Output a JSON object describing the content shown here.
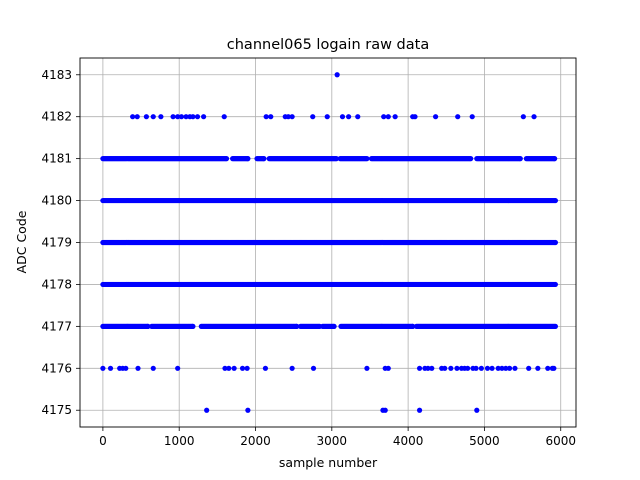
{
  "chart_data": {
    "type": "scatter",
    "title": "channel065 logain raw data",
    "xlabel": "sample number",
    "ylabel": "ADC Code",
    "xlim": [
      -300,
      6200
    ],
    "ylim": [
      4174.6,
      4183.4
    ],
    "xticks": [
      0,
      1000,
      2000,
      3000,
      4000,
      5000,
      6000
    ],
    "yticks": [
      4175,
      4176,
      4177,
      4178,
      4179,
      4180,
      4181,
      4182,
      4183
    ],
    "grid": true,
    "legend": "none",
    "marker_color": "#0000ff",
    "sample_count_approx": 5930,
    "series": [
      {
        "points_by_level": [
          {
            "y": 4183,
            "x": [
              3070
            ]
          },
          {
            "y": 4182,
            "x": [
              390,
              450,
              570,
              660,
              760,
              920,
              980,
              1030,
              1090,
              1140,
              1180,
              1240,
              1320,
              1590,
              2140,
              2200,
              2390,
              2430,
              2480,
              2750,
              2940,
              3140,
              3220,
              3340,
              3680,
              3740,
              3830,
              4060,
              4090,
              4360,
              4650,
              4840,
              5510,
              5650
            ]
          },
          {
            "y": 4181,
            "x_ranges": [
              [
                0,
                1620
              ],
              [
                1700,
                1900
              ],
              [
                2020,
                2110
              ],
              [
                2180,
                3060
              ],
              [
                3110,
                3460
              ],
              [
                3520,
                4820
              ],
              [
                4900,
                5470
              ],
              [
                5550,
                5920
              ]
            ]
          },
          {
            "y": 4180,
            "x_ranges": [
              [
                0,
                5930
              ]
            ]
          },
          {
            "y": 4179,
            "x_ranges": [
              [
                0,
                5930
              ]
            ]
          },
          {
            "y": 4178,
            "x_ranges": [
              [
                0,
                5930
              ]
            ]
          },
          {
            "y": 4177,
            "x_ranges": [
              [
                0,
                590
              ],
              [
                640,
                1180
              ],
              [
                1290,
                2540
              ],
              [
                2590,
                2840
              ],
              [
                2880,
                3030
              ],
              [
                3120,
                4060
              ],
              [
                4110,
                5930
              ]
            ]
          },
          {
            "y": 4176,
            "x": [
              0,
              100,
              220,
              260,
              300,
              460,
              660,
              980,
              1600,
              1650,
              1720,
              1830,
              1890,
              2130,
              2480,
              2760,
              3460,
              3700,
              3740,
              4150,
              4220,
              4260,
              4310,
              4440,
              4480,
              4560,
              4640,
              4700,
              4740,
              4780,
              4850,
              4890,
              4960,
              5040,
              5100,
              5180,
              5230,
              5280,
              5330,
              5400,
              5580,
              5700,
              5830,
              5890,
              5910
            ]
          },
          {
            "y": 4175,
            "x": [
              1360,
              1900,
              3670,
              3700,
              4150,
              4900
            ]
          }
        ]
      }
    ]
  }
}
